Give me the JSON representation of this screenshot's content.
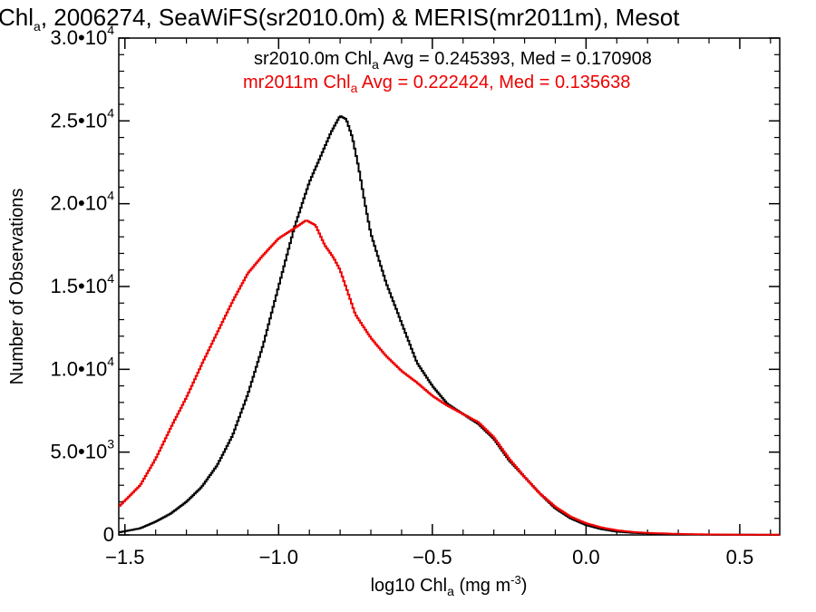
{
  "chart_data": {
    "type": "line",
    "title_parts": [
      "Chl",
      "a",
      ", 2006274, SeaWiFS(sr2010.0m) & MERIS(mr2011m), Mesot"
    ],
    "xlabel_parts": [
      "log10 Chl",
      "a",
      " (mg m",
      "-3",
      ")"
    ],
    "ylabel": "Number of Observations",
    "xlim": [
      -1.52,
      0.63
    ],
    "ylim": [
      0,
      30000
    ],
    "x_ticks": [
      -1.5,
      -1.0,
      -0.5,
      0.0,
      0.5
    ],
    "x_tick_labels": [
      "−1.5",
      "−1.0",
      "−0.5",
      "0.0",
      "0.5"
    ],
    "y_ticks": [
      0,
      5000,
      10000,
      15000,
      20000,
      25000,
      30000
    ],
    "y_tick_labels": [
      {
        "mantissa": "0",
        "exp": ""
      },
      {
        "mantissa": "5.0•10",
        "exp": "3"
      },
      {
        "mantissa": "1.0•10",
        "exp": "4"
      },
      {
        "mantissa": "1.5•10",
        "exp": "4"
      },
      {
        "mantissa": "2.0•10",
        "exp": "4"
      },
      {
        "mantissa": "2.5•10",
        "exp": "4"
      },
      {
        "mantissa": "3.0•10",
        "exp": "4"
      }
    ],
    "grid": false,
    "legend_position": "top-right",
    "series": [
      {
        "color": "#000000",
        "stat_label": {
          "prefix": "sr2010.0m Chl",
          "sub": "a",
          "suffix": " Avg = 0.245393, Med = 0.170908"
        },
        "x": [
          -1.52,
          -1.45,
          -1.4,
          -1.35,
          -1.3,
          -1.25,
          -1.2,
          -1.15,
          -1.1,
          -1.05,
          -1.0,
          -0.95,
          -0.9,
          -0.86,
          -0.83,
          -0.8,
          -0.78,
          -0.76,
          -0.74,
          -0.72,
          -0.7,
          -0.65,
          -0.6,
          -0.55,
          -0.5,
          -0.45,
          -0.4,
          -0.35,
          -0.3,
          -0.25,
          -0.2,
          -0.15,
          -0.1,
          -0.05,
          0.0,
          0.05,
          0.1,
          0.15,
          0.2,
          0.3,
          0.4,
          0.5,
          0.63
        ],
        "y": [
          150,
          400,
          800,
          1300,
          2000,
          2900,
          4200,
          6000,
          8500,
          11500,
          15000,
          18500,
          21300,
          23000,
          24300,
          25300,
          25100,
          24000,
          22200,
          20100,
          18200,
          15200,
          12800,
          10400,
          9000,
          7900,
          7300,
          6700,
          5800,
          4500,
          3500,
          2500,
          1600,
          1000,
          600,
          350,
          200,
          130,
          90,
          40,
          20,
          10,
          5
        ]
      },
      {
        "color": "#ee0000",
        "stat_label": {
          "prefix": "mr2011m Chl",
          "sub": "a",
          "suffix": " Avg = 0.222424, Med = 0.135638"
        },
        "x": [
          -1.52,
          -1.45,
          -1.4,
          -1.35,
          -1.3,
          -1.25,
          -1.2,
          -1.15,
          -1.1,
          -1.05,
          -1.0,
          -0.95,
          -0.91,
          -0.88,
          -0.85,
          -0.82,
          -0.8,
          -0.75,
          -0.7,
          -0.65,
          -0.6,
          -0.55,
          -0.5,
          -0.45,
          -0.4,
          -0.35,
          -0.3,
          -0.25,
          -0.2,
          -0.15,
          -0.1,
          -0.05,
          0.0,
          0.05,
          0.1,
          0.15,
          0.2,
          0.3,
          0.4,
          0.5,
          0.63
        ],
        "y": [
          1700,
          3000,
          4600,
          6500,
          8300,
          10300,
          12200,
          14100,
          15800,
          16900,
          17900,
          18500,
          19000,
          18700,
          17500,
          16700,
          16000,
          13300,
          11900,
          10800,
          9900,
          9200,
          8400,
          7800,
          7300,
          6800,
          5900,
          4600,
          3500,
          2500,
          1700,
          1100,
          700,
          450,
          280,
          180,
          120,
          60,
          30,
          15,
          8
        ]
      }
    ]
  }
}
